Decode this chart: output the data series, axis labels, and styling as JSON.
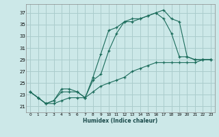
{
  "title": "",
  "xlabel": "Humidex (Indice chaleur)",
  "bg_color": "#cce8e8",
  "grid_color": "#aacccc",
  "line_color": "#1a6b5a",
  "marker_color": "#1a6b5a",
  "xlim": [
    -0.5,
    23.5
  ],
  "ylim": [
    20.0,
    38.5
  ],
  "yticks": [
    21,
    23,
    25,
    27,
    29,
    31,
    33,
    35,
    37
  ],
  "xticks": [
    0,
    1,
    2,
    3,
    4,
    5,
    6,
    7,
    8,
    9,
    10,
    11,
    12,
    13,
    14,
    15,
    16,
    17,
    18,
    19,
    20,
    21,
    22,
    23
  ],
  "curve1_x": [
    0,
    1,
    2,
    3,
    4,
    5,
    6,
    7,
    8,
    9,
    10,
    11,
    12,
    13,
    14,
    15,
    16,
    17,
    18,
    19,
    20,
    21,
    22,
    23
  ],
  "curve1_y": [
    23.5,
    22.5,
    21.5,
    22.0,
    24.0,
    24.0,
    23.5,
    22.5,
    26.0,
    30.0,
    34.0,
    34.5,
    35.5,
    36.0,
    36.0,
    36.5,
    37.0,
    37.5,
    36.0,
    35.5,
    29.5,
    29.0,
    29.0,
    29.0
  ],
  "curve2_x": [
    0,
    1,
    2,
    3,
    4,
    5,
    6,
    7,
    8,
    9,
    10,
    11,
    12,
    13,
    14,
    15,
    16,
    17,
    18,
    19,
    20,
    21,
    22,
    23
  ],
  "curve2_y": [
    23.5,
    22.5,
    21.5,
    22.0,
    23.5,
    23.5,
    23.5,
    22.5,
    25.5,
    26.5,
    30.5,
    33.5,
    35.5,
    35.5,
    36.0,
    36.5,
    37.0,
    36.0,
    33.5,
    29.5,
    29.5,
    29.0,
    29.0,
    29.0
  ],
  "curve3_x": [
    0,
    1,
    2,
    3,
    4,
    5,
    6,
    7,
    8,
    9,
    10,
    11,
    12,
    13,
    14,
    15,
    16,
    17,
    18,
    19,
    20,
    21,
    22,
    23
  ],
  "curve3_y": [
    23.5,
    22.5,
    21.5,
    21.5,
    22.0,
    22.5,
    22.5,
    22.5,
    23.5,
    24.5,
    25.0,
    25.5,
    26.0,
    27.0,
    27.5,
    28.0,
    28.5,
    28.5,
    28.5,
    28.5,
    28.5,
    28.5,
    29.0,
    29.0
  ]
}
